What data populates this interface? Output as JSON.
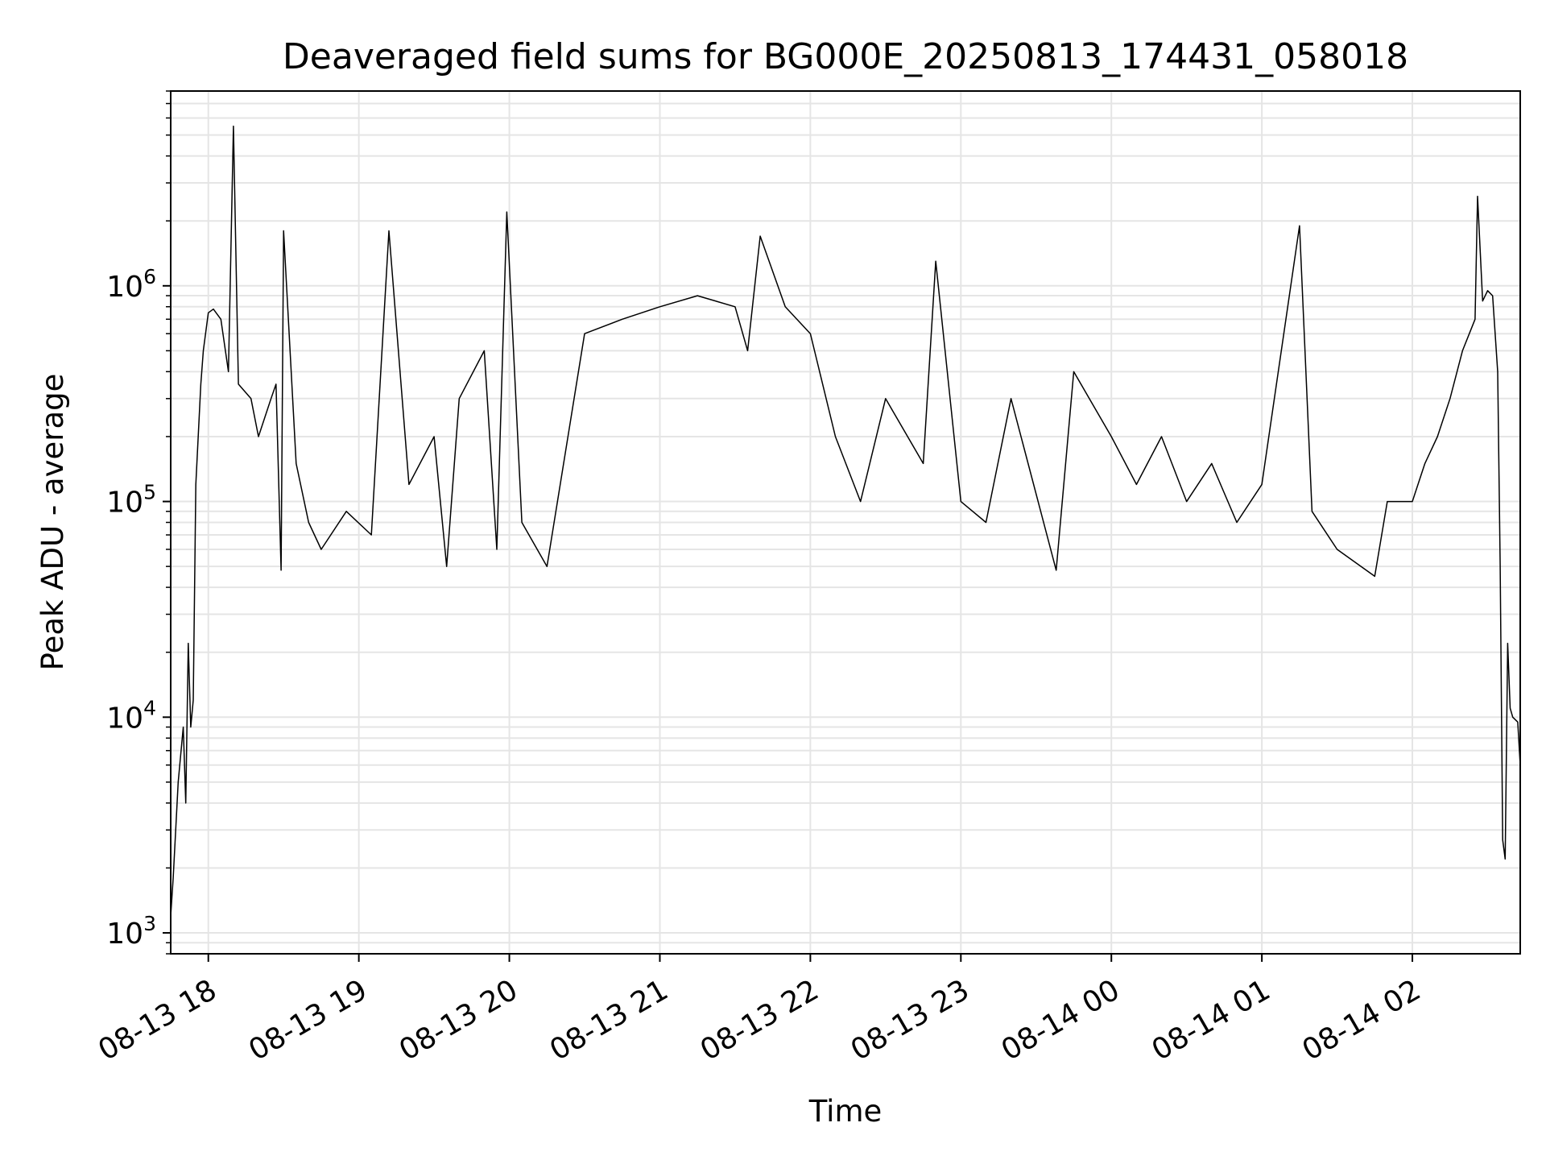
{
  "chart_data": {
    "type": "line",
    "title": "Deaveraged field sums for BG000E_20250813_174431_058018",
    "xlabel": "Time",
    "ylabel": "Peak ADU - average",
    "yscale": "log",
    "grid": true,
    "line_color": "#000000",
    "grid_color": "#e5e5e5",
    "xlim": [
      "2025-08-13 17:45",
      "2025-08-14 02:43"
    ],
    "ylim": [
      800,
      8000000
    ],
    "x_ticks": [
      {
        "value": "2025-08-13 18:00",
        "label": "08-13 18"
      },
      {
        "value": "2025-08-13 19:00",
        "label": "08-13 19"
      },
      {
        "value": "2025-08-13 20:00",
        "label": "08-13 20"
      },
      {
        "value": "2025-08-13 21:00",
        "label": "08-13 21"
      },
      {
        "value": "2025-08-13 22:00",
        "label": "08-13 22"
      },
      {
        "value": "2025-08-13 23:00",
        "label": "08-13 23"
      },
      {
        "value": "2025-08-14 00:00",
        "label": "08-14 00"
      },
      {
        "value": "2025-08-14 01:00",
        "label": "08-14 01"
      },
      {
        "value": "2025-08-14 02:00",
        "label": "08-14 02"
      }
    ],
    "y_ticks": [
      {
        "value": 1000,
        "base": "10",
        "exp": "3"
      },
      {
        "value": 10000,
        "base": "10",
        "exp": "4"
      },
      {
        "value": 100000,
        "base": "10",
        "exp": "5"
      },
      {
        "value": 1000000,
        "base": "10",
        "exp": "6"
      }
    ],
    "series": [
      {
        "points": [
          [
            "2025-08-13 17:45",
            1200
          ],
          [
            "2025-08-13 17:46",
            1800
          ],
          [
            "2025-08-13 17:48",
            5000
          ],
          [
            "2025-08-13 17:50",
            9000
          ],
          [
            "2025-08-13 17:51",
            4000
          ],
          [
            "2025-08-13 17:52",
            22000
          ],
          [
            "2025-08-13 17:53",
            9000
          ],
          [
            "2025-08-13 17:54",
            12000
          ],
          [
            "2025-08-13 17:55",
            120000
          ],
          [
            "2025-08-13 17:57",
            350000
          ],
          [
            "2025-08-13 17:58",
            500000
          ],
          [
            "2025-08-13 18:00",
            750000
          ],
          [
            "2025-08-13 18:02",
            780000
          ],
          [
            "2025-08-13 18:05",
            700000
          ],
          [
            "2025-08-13 18:08",
            400000
          ],
          [
            "2025-08-13 18:10",
            5500000
          ],
          [
            "2025-08-13 18:12",
            350000
          ],
          [
            "2025-08-13 18:17",
            300000
          ],
          [
            "2025-08-13 18:20",
            200000
          ],
          [
            "2025-08-13 18:25",
            300000
          ],
          [
            "2025-08-13 18:27",
            350000
          ],
          [
            "2025-08-13 18:29",
            48000
          ],
          [
            "2025-08-13 18:30",
            1800000
          ],
          [
            "2025-08-13 18:35",
            150000
          ],
          [
            "2025-08-13 18:40",
            80000
          ],
          [
            "2025-08-13 18:45",
            60000
          ],
          [
            "2025-08-13 18:55",
            90000
          ],
          [
            "2025-08-13 19:05",
            70000
          ],
          [
            "2025-08-13 19:12",
            1800000
          ],
          [
            "2025-08-13 19:20",
            120000
          ],
          [
            "2025-08-13 19:30",
            200000
          ],
          [
            "2025-08-13 19:35",
            50000
          ],
          [
            "2025-08-13 19:40",
            300000
          ],
          [
            "2025-08-13 19:50",
            500000
          ],
          [
            "2025-08-13 19:55",
            60000
          ],
          [
            "2025-08-13 19:59",
            2200000
          ],
          [
            "2025-08-13 20:05",
            80000
          ],
          [
            "2025-08-13 20:15",
            50000
          ],
          [
            "2025-08-13 20:30",
            600000
          ],
          [
            "2025-08-13 20:45",
            700000
          ],
          [
            "2025-08-13 21:00",
            800000
          ],
          [
            "2025-08-13 21:15",
            900000
          ],
          [
            "2025-08-13 21:30",
            800000
          ],
          [
            "2025-08-13 21:35",
            500000
          ],
          [
            "2025-08-13 21:40",
            1700000
          ],
          [
            "2025-08-13 21:50",
            800000
          ],
          [
            "2025-08-13 22:00",
            600000
          ],
          [
            "2025-08-13 22:10",
            200000
          ],
          [
            "2025-08-13 22:20",
            100000
          ],
          [
            "2025-08-13 22:30",
            300000
          ],
          [
            "2025-08-13 22:45",
            150000
          ],
          [
            "2025-08-13 22:50",
            1300000
          ],
          [
            "2025-08-13 23:00",
            100000
          ],
          [
            "2025-08-13 23:10",
            80000
          ],
          [
            "2025-08-13 23:20",
            300000
          ],
          [
            "2025-08-13 23:38",
            48000
          ],
          [
            "2025-08-13 23:45",
            400000
          ],
          [
            "2025-08-14 00:00",
            200000
          ],
          [
            "2025-08-14 00:10",
            120000
          ],
          [
            "2025-08-14 00:20",
            200000
          ],
          [
            "2025-08-14 00:30",
            100000
          ],
          [
            "2025-08-14 00:40",
            150000
          ],
          [
            "2025-08-14 00:50",
            80000
          ],
          [
            "2025-08-14 01:00",
            120000
          ],
          [
            "2025-08-14 01:15",
            1900000
          ],
          [
            "2025-08-14 01:20",
            90000
          ],
          [
            "2025-08-14 01:30",
            60000
          ],
          [
            "2025-08-14 01:45",
            45000
          ],
          [
            "2025-08-14 01:50",
            100000
          ],
          [
            "2025-08-14 02:00",
            100000
          ],
          [
            "2025-08-14 02:05",
            150000
          ],
          [
            "2025-08-14 02:10",
            200000
          ],
          [
            "2025-08-14 02:15",
            300000
          ],
          [
            "2025-08-14 02:20",
            500000
          ],
          [
            "2025-08-14 02:25",
            700000
          ],
          [
            "2025-08-14 02:26",
            2600000
          ],
          [
            "2025-08-14 02:28",
            850000
          ],
          [
            "2025-08-14 02:30",
            950000
          ],
          [
            "2025-08-14 02:32",
            900000
          ],
          [
            "2025-08-14 02:34",
            400000
          ],
          [
            "2025-08-14 02:35",
            50000
          ],
          [
            "2025-08-14 02:36",
            2700
          ],
          [
            "2025-08-14 02:37",
            2200
          ],
          [
            "2025-08-14 02:38",
            22000
          ],
          [
            "2025-08-14 02:39",
            11000
          ],
          [
            "2025-08-14 02:40",
            10000
          ],
          [
            "2025-08-14 02:42",
            9500
          ],
          [
            "2025-08-14 02:43",
            6000
          ]
        ]
      }
    ]
  }
}
